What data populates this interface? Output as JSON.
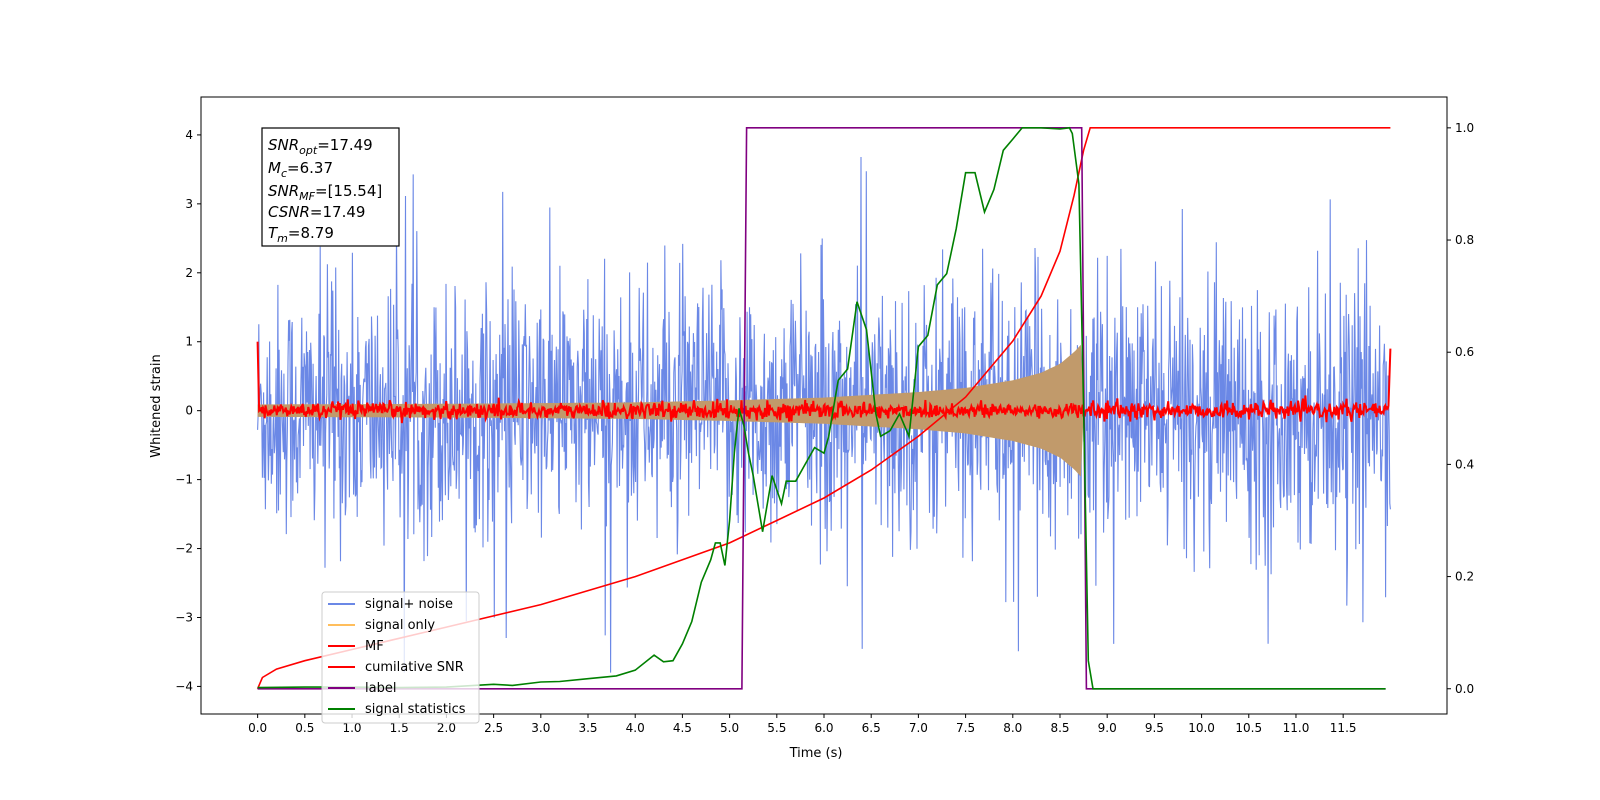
{
  "chart_data": {
    "type": "line",
    "title": "",
    "xlabel": "Time (s)",
    "ylabel_left": "Whitened strain",
    "ylabel_right": "",
    "xlim": [
      -0.6,
      12.6
    ],
    "ylim_left": [
      -4.4,
      4.55
    ],
    "ylim_right": [
      -0.045,
      1.055
    ],
    "x_ticks": [
      "0.0",
      "0.5",
      "1.0",
      "1.5",
      "2.0",
      "2.5",
      "3.0",
      "3.5",
      "4.0",
      "4.5",
      "5.0",
      "5.5",
      "6.0",
      "6.5",
      "7.0",
      "7.5",
      "8.0",
      "8.5",
      "9.0",
      "9.5",
      "10.0",
      "10.5",
      "11.0",
      "11.5"
    ],
    "y_ticks_left": [
      "−4",
      "−3",
      "−2",
      "−1",
      "0",
      "1",
      "2",
      "3",
      "4"
    ],
    "y_ticks_right": [
      "0.0",
      "0.2",
      "0.4",
      "0.6",
      "0.8",
      "1.0"
    ],
    "grid": false,
    "legend_position": "lower-left",
    "annotation": {
      "snr_opt": {
        "base": "SNR",
        "sub": "opt",
        "value": "=17.49"
      },
      "mc": {
        "base": "M",
        "sub": "c",
        "value": "=6.37"
      },
      "snr_mf": {
        "base": "SNR",
        "sub": "MF",
        "value": "=[15.54]"
      },
      "csnr": {
        "base": "CSNR",
        "sub": "",
        "value": "=17.49"
      },
      "tm": {
        "base": "T",
        "sub": "m",
        "value": "=8.79"
      }
    },
    "series": [
      {
        "name": "signal+ noise",
        "color": "#6b88e6",
        "axis": "left",
        "note_values": "noise-dominated trace, amplitude about ±2, spikes to about ±4.1, from x=0 to 12"
      },
      {
        "name": "signal only",
        "color": "#ffbe5c",
        "axis": "left",
        "envelope": [
          [
            0,
            0.09
          ],
          [
            2,
            0.1
          ],
          [
            4,
            0.12
          ],
          [
            5,
            0.15
          ],
          [
            6,
            0.19
          ],
          [
            7,
            0.27
          ],
          [
            7.5,
            0.33
          ],
          [
            8,
            0.44
          ],
          [
            8.3,
            0.55
          ],
          [
            8.5,
            0.68
          ],
          [
            8.65,
            0.85
          ],
          [
            8.75,
            1.0
          ]
        ]
      },
      {
        "name": "MF",
        "color": "#ff0000",
        "axis": "left",
        "note_values": "noisy trace near 0 (about ±0.15), starts at 1.0 at x=0"
      },
      {
        "name": "cumilative SNR",
        "color": "#ff0000",
        "axis": "right",
        "points": [
          [
            0,
            0.0
          ],
          [
            0.05,
            0.02
          ],
          [
            0.2,
            0.035
          ],
          [
            0.5,
            0.05
          ],
          [
            1,
            0.07
          ],
          [
            2,
            0.11
          ],
          [
            3,
            0.15
          ],
          [
            4,
            0.2
          ],
          [
            5,
            0.26
          ],
          [
            5.5,
            0.3
          ],
          [
            6,
            0.34
          ],
          [
            6.5,
            0.39
          ],
          [
            7,
            0.45
          ],
          [
            7.5,
            0.52
          ],
          [
            8,
            0.62
          ],
          [
            8.3,
            0.7
          ],
          [
            8.5,
            0.78
          ],
          [
            8.65,
            0.88
          ],
          [
            8.75,
            0.96
          ],
          [
            8.82,
            1.0
          ],
          [
            12,
            1.0
          ]
        ]
      },
      {
        "name": "label",
        "color": "#800080",
        "axis": "right",
        "points": [
          [
            0,
            0
          ],
          [
            5.13,
            0
          ],
          [
            5.18,
            1
          ],
          [
            8.73,
            1
          ],
          [
            8.78,
            0
          ],
          [
            11.95,
            0
          ]
        ]
      },
      {
        "name": "signal statistics",
        "color": "#008000",
        "axis": "right",
        "points": [
          [
            0,
            0.002
          ],
          [
            0.5,
            0.003
          ],
          [
            1,
            0.003
          ],
          [
            1.5,
            0.002
          ],
          [
            2,
            0.003
          ],
          [
            2.5,
            0.008
          ],
          [
            2.7,
            0.006
          ],
          [
            3,
            0.012
          ],
          [
            3.2,
            0.013
          ],
          [
            3.5,
            0.018
          ],
          [
            3.8,
            0.023
          ],
          [
            4,
            0.033
          ],
          [
            4.2,
            0.06
          ],
          [
            4.3,
            0.048
          ],
          [
            4.4,
            0.05
          ],
          [
            4.5,
            0.08
          ],
          [
            4.6,
            0.12
          ],
          [
            4.7,
            0.19
          ],
          [
            4.8,
            0.23
          ],
          [
            4.85,
            0.26
          ],
          [
            4.9,
            0.26
          ],
          [
            4.95,
            0.22
          ],
          [
            5.0,
            0.3
          ],
          [
            5.05,
            0.42
          ],
          [
            5.1,
            0.5
          ],
          [
            5.15,
            0.47
          ],
          [
            5.2,
            0.42
          ],
          [
            5.25,
            0.38
          ],
          [
            5.3,
            0.33
          ],
          [
            5.35,
            0.28
          ],
          [
            5.45,
            0.38
          ],
          [
            5.55,
            0.33
          ],
          [
            5.6,
            0.37
          ],
          [
            5.7,
            0.37
          ],
          [
            5.8,
            0.4
          ],
          [
            5.9,
            0.43
          ],
          [
            6.0,
            0.42
          ],
          [
            6.05,
            0.45
          ],
          [
            6.15,
            0.55
          ],
          [
            6.25,
            0.57
          ],
          [
            6.35,
            0.69
          ],
          [
            6.45,
            0.64
          ],
          [
            6.55,
            0.49
          ],
          [
            6.6,
            0.45
          ],
          [
            6.7,
            0.46
          ],
          [
            6.8,
            0.49
          ],
          [
            6.9,
            0.45
          ],
          [
            7.0,
            0.61
          ],
          [
            7.1,
            0.63
          ],
          [
            7.2,
            0.72
          ],
          [
            7.3,
            0.74
          ],
          [
            7.4,
            0.82
          ],
          [
            7.5,
            0.92
          ],
          [
            7.6,
            0.92
          ],
          [
            7.7,
            0.85
          ],
          [
            7.8,
            0.89
          ],
          [
            7.9,
            0.96
          ],
          [
            8.0,
            0.98
          ],
          [
            8.1,
            1.0
          ],
          [
            8.3,
            1.0
          ],
          [
            8.5,
            0.998
          ],
          [
            8.6,
            1.0
          ],
          [
            8.63,
            0.99
          ],
          [
            8.7,
            0.9
          ],
          [
            8.75,
            0.5
          ],
          [
            8.8,
            0.05
          ],
          [
            8.85,
            0.0
          ],
          [
            11.95,
            0.0
          ]
        ]
      }
    ]
  }
}
